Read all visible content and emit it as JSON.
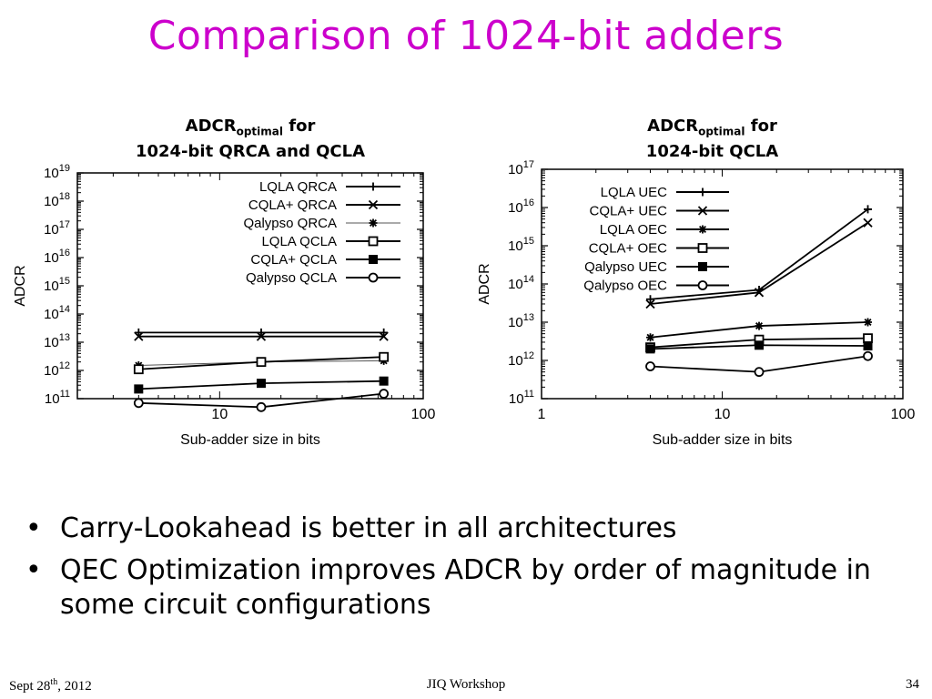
{
  "slide": {
    "title": "Comparison of 1024-bit adders",
    "bullets": [
      "Carry-Lookahead is better in all architectures",
      "QEC Optimization improves ADCR by order of magnitude in some circuit configurations"
    ],
    "bullet_glyph": "•",
    "footer": {
      "date_prefix": "Sept 28",
      "date_sup": "th",
      "date_suffix": ", 2012",
      "venue": "JIQ Workshop",
      "page": "34"
    },
    "colors": {
      "title": "#cc00cc",
      "text": "#000000",
      "background": "#ffffff"
    }
  },
  "chart_data": [
    {
      "type": "line",
      "title_main": "ADCR",
      "title_sub": "optimal",
      "title_rest": " for",
      "title_line2": "1024-bit QRCA and QCLA",
      "xlabel": "Sub-adder size in bits",
      "ylabel": "ADCR",
      "x_scale": "log",
      "y_scale": "log",
      "xlim": [
        2,
        100
      ],
      "x_ticks": [
        10,
        100
      ],
      "y_exp_range": [
        11,
        19
      ],
      "legend": "top-right",
      "x": [
        4,
        16,
        64
      ],
      "series": [
        {
          "name": "LQLA QRCA",
          "marker": "plus",
          "values": [
            22000000000000.0,
            22000000000000.0,
            22000000000000.0
          ]
        },
        {
          "name": "CQLA+ QRCA",
          "marker": "cross",
          "values": [
            16000000000000.0,
            16000000000000.0,
            16000000000000.0
          ]
        },
        {
          "name": "Qalypso QRCA",
          "marker": "star",
          "values": [
            1500000000000.0,
            2000000000000.0,
            2200000000000.0
          ],
          "thin": true
        },
        {
          "name": "LQLA QCLA",
          "marker": "square",
          "values": [
            1100000000000.0,
            2000000000000.0,
            3000000000000.0
          ]
        },
        {
          "name": "CQLA+ QCLA",
          "marker": "filled-square",
          "values": [
            220000000000.0,
            350000000000.0,
            420000000000.0
          ]
        },
        {
          "name": "Qalypso QCLA",
          "marker": "circle",
          "values": [
            70000000000.0,
            50000000000.0,
            150000000000.0
          ]
        }
      ]
    },
    {
      "type": "line",
      "title_main": "ADCR",
      "title_sub": "optimal",
      "title_rest": " for",
      "title_line2": "1024-bit QCLA",
      "xlabel": "Sub-adder size in bits",
      "ylabel": "ADCR",
      "x_scale": "log",
      "y_scale": "log",
      "xlim": [
        1,
        100
      ],
      "x_ticks": [
        1,
        10,
        100
      ],
      "y_exp_range": [
        11,
        17
      ],
      "legend": "top-left",
      "x": [
        4,
        16,
        64
      ],
      "series": [
        {
          "name": "LQLA UEC",
          "marker": "plus",
          "values": [
            40000000000000.0,
            70000000000000.0,
            9000000000000000.0
          ]
        },
        {
          "name": "CQLA+ UEC",
          "marker": "cross",
          "values": [
            30000000000000.0,
            60000000000000.0,
            4000000000000000.0
          ]
        },
        {
          "name": "LQLA OEC",
          "marker": "star",
          "values": [
            4000000000000.0,
            8000000000000.0,
            10000000000000.0
          ]
        },
        {
          "name": "CQLA+ OEC",
          "marker": "square",
          "values": [
            2200000000000.0,
            3500000000000.0,
            3800000000000.0
          ]
        },
        {
          "name": "Qalypso UEC",
          "marker": "filled-square",
          "values": [
            2000000000000.0,
            2500000000000.0,
            2400000000000.0
          ]
        },
        {
          "name": "Qalypso OEC",
          "marker": "circle",
          "values": [
            700000000000.0,
            500000000000.0,
            1300000000000.0
          ]
        }
      ]
    }
  ]
}
